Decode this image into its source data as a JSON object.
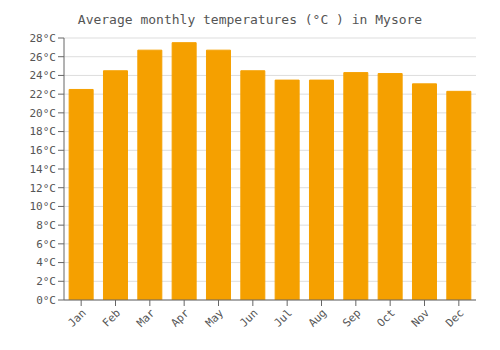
{
  "chart_data": {
    "type": "bar",
    "title": "Average monthly temperatures (°C ) in Mysore",
    "categories": [
      "Jan",
      "Feb",
      "Mar",
      "Apr",
      "May",
      "Jun",
      "Jul",
      "Aug",
      "Sep",
      "Oct",
      "Nov",
      "Dec"
    ],
    "values": [
      22.5,
      24.5,
      26.7,
      27.5,
      26.7,
      24.5,
      23.5,
      23.5,
      24.3,
      24.2,
      23.1,
      22.3
    ],
    "color": "#F5A000",
    "ylim": [
      0,
      28
    ],
    "yticks": [
      {
        "value": 0,
        "label": "0°C"
      },
      {
        "value": 2,
        "label": "2°C"
      },
      {
        "value": 4,
        "label": "4°C"
      },
      {
        "value": 6,
        "label": "6°C"
      },
      {
        "value": 8,
        "label": "8°C"
      },
      {
        "value": 10,
        "label": "10°C"
      },
      {
        "value": 12,
        "label": "12°C"
      },
      {
        "value": 14,
        "label": "14°C"
      },
      {
        "value": 16,
        "label": "16°C"
      },
      {
        "value": 18,
        "label": "18°C"
      },
      {
        "value": 20,
        "label": "20°C"
      },
      {
        "value": 22,
        "label": "22°C"
      },
      {
        "value": 24,
        "label": "24°C"
      },
      {
        "value": 26,
        "label": "26°C"
      },
      {
        "value": 28,
        "label": "28°C"
      }
    ],
    "grid": true
  }
}
